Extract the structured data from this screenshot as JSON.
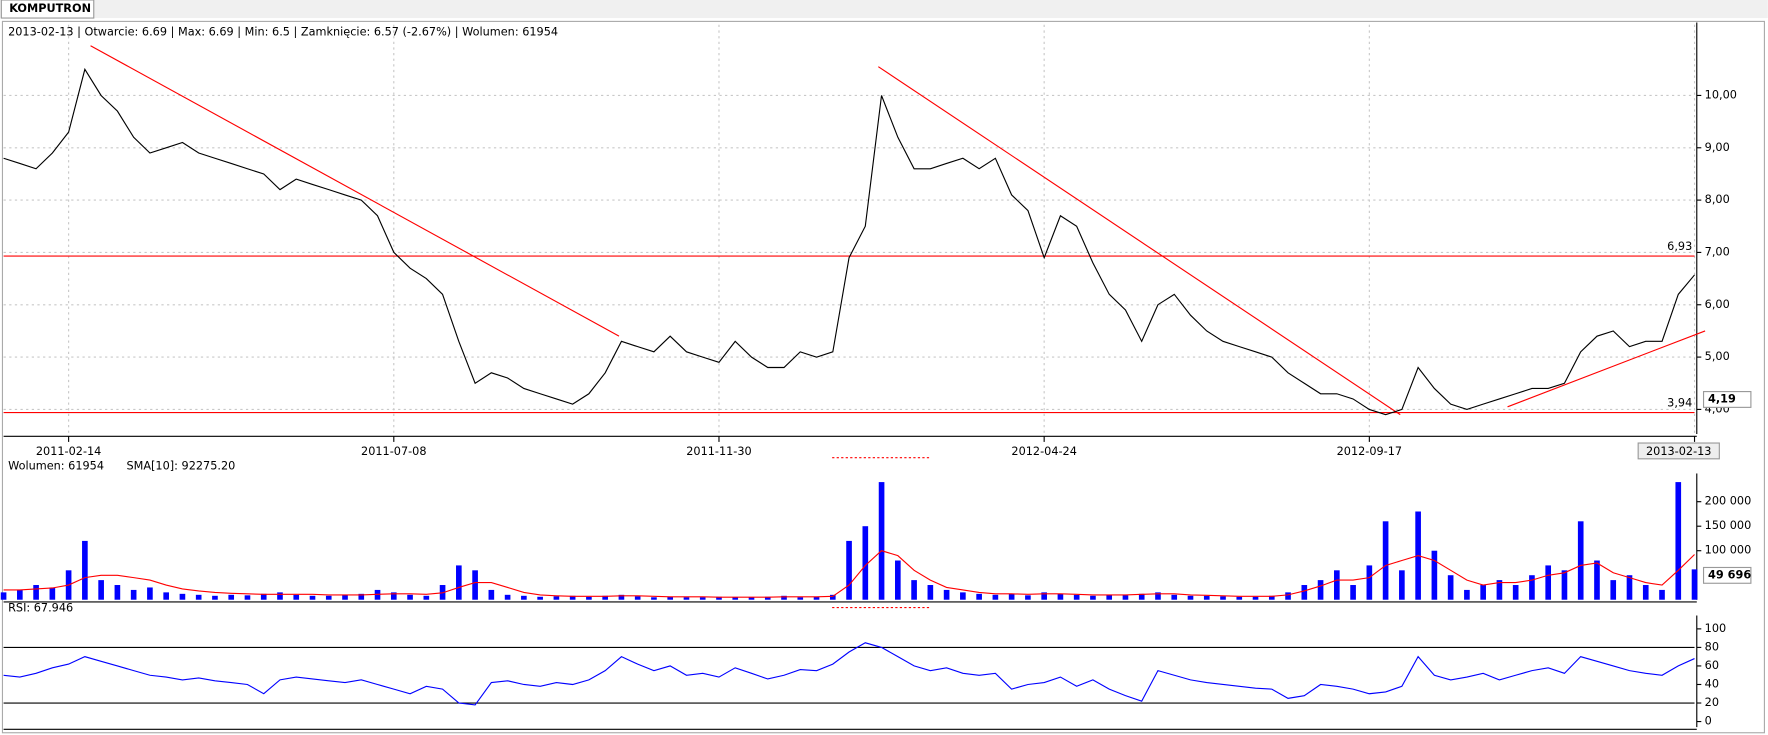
{
  "tab": "KOMPUTRON",
  "chart_data": [
    {
      "type": "line",
      "title": "2013-02-13 | Otwarcie: 6.69 | Max: 6.69 | Min: 6.5 | Zamknięcie: 6.57 (-2.67%)  | Wolumen: 61954",
      "categories": [
        null,
        null,
        null,
        null,
        "2011-02-14",
        null,
        null,
        null,
        null,
        null,
        null,
        null,
        null,
        null,
        null,
        null,
        null,
        null,
        null,
        null,
        null,
        null,
        null,
        null,
        "2011-07-08",
        null,
        null,
        null,
        null,
        null,
        null,
        null,
        null,
        null,
        null,
        null,
        null,
        null,
        null,
        null,
        null,
        null,
        null,
        null,
        "2011-11-30",
        null,
        null,
        null,
        null,
        null,
        null,
        null,
        null,
        null,
        null,
        null,
        null,
        null,
        null,
        null,
        null,
        null,
        null,
        null,
        "2012-04-24",
        null,
        null,
        null,
        null,
        null,
        null,
        null,
        null,
        null,
        null,
        null,
        null,
        null,
        null,
        null,
        null,
        null,
        null,
        null,
        "2012-09-17",
        null,
        null,
        null,
        null,
        null,
        null,
        null,
        null,
        null,
        null,
        null,
        null,
        null,
        null,
        null,
        null,
        null,
        null,
        null,
        "2013-02-13"
      ],
      "series": [
        {
          "color": "#000000",
          "values": [
            8.8,
            8.7,
            8.6,
            8.9,
            9.3,
            10.5,
            10.0,
            9.7,
            9.2,
            8.9,
            9.0,
            9.1,
            8.9,
            8.8,
            8.7,
            8.6,
            8.5,
            8.2,
            8.4,
            8.3,
            8.2,
            8.1,
            8.0,
            7.7,
            7.0,
            6.7,
            6.5,
            6.2,
            5.3,
            4.5,
            4.7,
            4.6,
            4.4,
            4.3,
            4.2,
            4.1,
            4.3,
            4.7,
            5.3,
            5.2,
            5.1,
            5.4,
            5.1,
            5.0,
            4.9,
            5.3,
            5.0,
            4.8,
            4.8,
            5.1,
            5.0,
            5.1,
            6.9,
            7.5,
            10.0,
            9.2,
            8.6,
            8.6,
            8.7,
            8.8,
            8.6,
            8.8,
            8.1,
            7.8,
            6.9,
            7.7,
            7.5,
            6.8,
            6.2,
            5.9,
            5.3,
            6.0,
            6.2,
            5.8,
            5.5,
            5.3,
            5.2,
            5.1,
            5.0,
            4.7,
            4.5,
            4.3,
            4.3,
            4.2,
            4.0,
            3.9,
            4.0,
            4.8,
            4.4,
            4.1,
            4.0,
            4.1,
            4.2,
            4.3,
            4.4,
            4.4,
            4.5,
            5.1,
            5.4,
            5.5,
            5.2,
            5.3,
            5.3,
            6.2,
            6.57
          ]
        }
      ],
      "ylim": [
        3.53,
        11.35
      ],
      "yticks": [
        {
          "value": 4,
          "label": "4,00"
        },
        {
          "value": 5,
          "label": "5,00"
        },
        {
          "value": 6,
          "label": "6,00"
        },
        {
          "value": 7,
          "label": "7,00"
        },
        {
          "value": 8,
          "label": "8,00"
        },
        {
          "value": 9,
          "label": "9,00"
        },
        {
          "value": 10,
          "label": "10,00"
        }
      ],
      "grid": true,
      "hlines": [
        {
          "value": 6.93,
          "label": "6,93",
          "color": "#ff0000"
        },
        {
          "value": 3.94,
          "label": "3,94",
          "color": "#ff0000"
        }
      ],
      "trendlines": [
        {
          "color": "#ff0000",
          "points": [
            [
              5.35,
              10.95
            ],
            [
              37.85,
              5.4
            ]
          ]
        },
        {
          "color": "#ff0000",
          "points": [
            [
              53.8,
              10.55
            ],
            [
              85.9,
              3.9
            ]
          ]
        },
        {
          "color": "#ff0000",
          "points": [
            [
              92.5,
              4.05
            ],
            [
              104.65,
              5.5
            ]
          ]
        }
      ],
      "marker": {
        "value": 4.19,
        "label": "4,19"
      }
    },
    {
      "type": "bar",
      "legend": [
        {
          "text": "Wolumen: 61954",
          "color": "#0000ff"
        },
        {
          "text": "SMA[10]: 92275.20",
          "color": "#ff0000"
        }
      ],
      "series": [
        {
          "color": "#0000ff",
          "values": [
            15000,
            20000,
            30000,
            25000,
            60000,
            120000,
            40000,
            30000,
            20000,
            25000,
            15000,
            12000,
            10000,
            8000,
            10000,
            9000,
            12000,
            15000,
            10000,
            8000,
            8000,
            10000,
            12000,
            20000,
            15000,
            10000,
            8000,
            30000,
            70000,
            60000,
            20000,
            10000,
            8000,
            6000,
            7000,
            8000,
            6000,
            8000,
            10000,
            7000,
            5000,
            6000,
            5000,
            5000,
            6000,
            5000,
            5000,
            6000,
            8000,
            5000,
            6000,
            10000,
            120000,
            150000,
            240000,
            80000,
            40000,
            30000,
            20000,
            15000,
            12000,
            10000,
            12000,
            9000,
            15000,
            12000,
            10000,
            8000,
            10000,
            9000,
            12000,
            15000,
            10000,
            8000,
            8000,
            7000,
            6000,
            6000,
            8000,
            15000,
            30000,
            40000,
            60000,
            30000,
            70000,
            160000,
            60000,
            180000,
            100000,
            50000,
            20000,
            30000,
            40000,
            30000,
            50000,
            70000,
            60000,
            160000,
            80000,
            40000,
            50000,
            30000,
            20000,
            240000,
            61954
          ]
        },
        {
          "type": "line",
          "color": "#ff0000",
          "values": [
            20000,
            20000,
            22000,
            24000,
            30000,
            45000,
            50000,
            50000,
            45000,
            40000,
            30000,
            22000,
            18000,
            15000,
            13000,
            12000,
            11000,
            11000,
            11000,
            11000,
            10000,
            10000,
            10000,
            11000,
            12000,
            12000,
            11000,
            14000,
            25000,
            35000,
            35000,
            25000,
            15000,
            10000,
            8000,
            7000,
            7000,
            7000,
            8000,
            8000,
            7000,
            6000,
            6000,
            6000,
            5000,
            5000,
            5000,
            5000,
            6000,
            6000,
            6000,
            7000,
            30000,
            70000,
            100000,
            90000,
            60000,
            40000,
            25000,
            20000,
            15000,
            12000,
            12000,
            11000,
            12000,
            12000,
            11000,
            10000,
            10000,
            10000,
            11000,
            12000,
            12000,
            10000,
            9000,
            8000,
            7000,
            7000,
            7000,
            10000,
            18000,
            28000,
            40000,
            40000,
            45000,
            70000,
            80000,
            90000,
            80000,
            60000,
            40000,
            30000,
            35000,
            35000,
            40000,
            50000,
            55000,
            70000,
            75000,
            55000,
            45000,
            35000,
            30000,
            60000,
            92275.2
          ]
        }
      ],
      "ylim": [
        0,
        253000
      ],
      "yticks": [
        {
          "value": 100000,
          "label": "100 000"
        },
        {
          "value": 150000,
          "label": "150 000"
        },
        {
          "value": 200000,
          "label": "200 000"
        }
      ],
      "marker": {
        "value": 49696,
        "label": "49 696"
      }
    },
    {
      "type": "line",
      "legend": [
        {
          "text": "RSI: 67.946",
          "color": "#0000ff"
        }
      ],
      "series": [
        {
          "color": "#0000ff",
          "values": [
            50,
            48,
            52,
            58,
            62,
            70,
            65,
            60,
            55,
            50,
            48,
            45,
            47,
            44,
            42,
            40,
            30,
            45,
            48,
            46,
            44,
            42,
            45,
            40,
            35,
            30,
            38,
            35,
            20,
            18,
            42,
            44,
            40,
            38,
            42,
            40,
            45,
            55,
            70,
            62,
            55,
            60,
            50,
            52,
            48,
            58,
            52,
            46,
            50,
            56,
            55,
            62,
            75,
            85,
            80,
            70,
            60,
            55,
            58,
            52,
            50,
            52,
            35,
            40,
            42,
            48,
            38,
            45,
            35,
            28,
            22,
            55,
            50,
            45,
            42,
            40,
            38,
            36,
            35,
            25,
            28,
            40,
            38,
            35,
            30,
            32,
            38,
            70,
            50,
            45,
            48,
            52,
            45,
            50,
            55,
            58,
            52,
            70,
            65,
            60,
            55,
            52,
            50,
            60,
            67.946
          ]
        }
      ],
      "ylim": [
        -6,
        112
      ],
      "yticks": [
        0,
        20,
        40,
        60,
        80,
        100
      ],
      "hlines": [
        {
          "value": 20,
          "color": "#000000"
        },
        {
          "value": 80,
          "color": "#000000"
        }
      ]
    }
  ]
}
